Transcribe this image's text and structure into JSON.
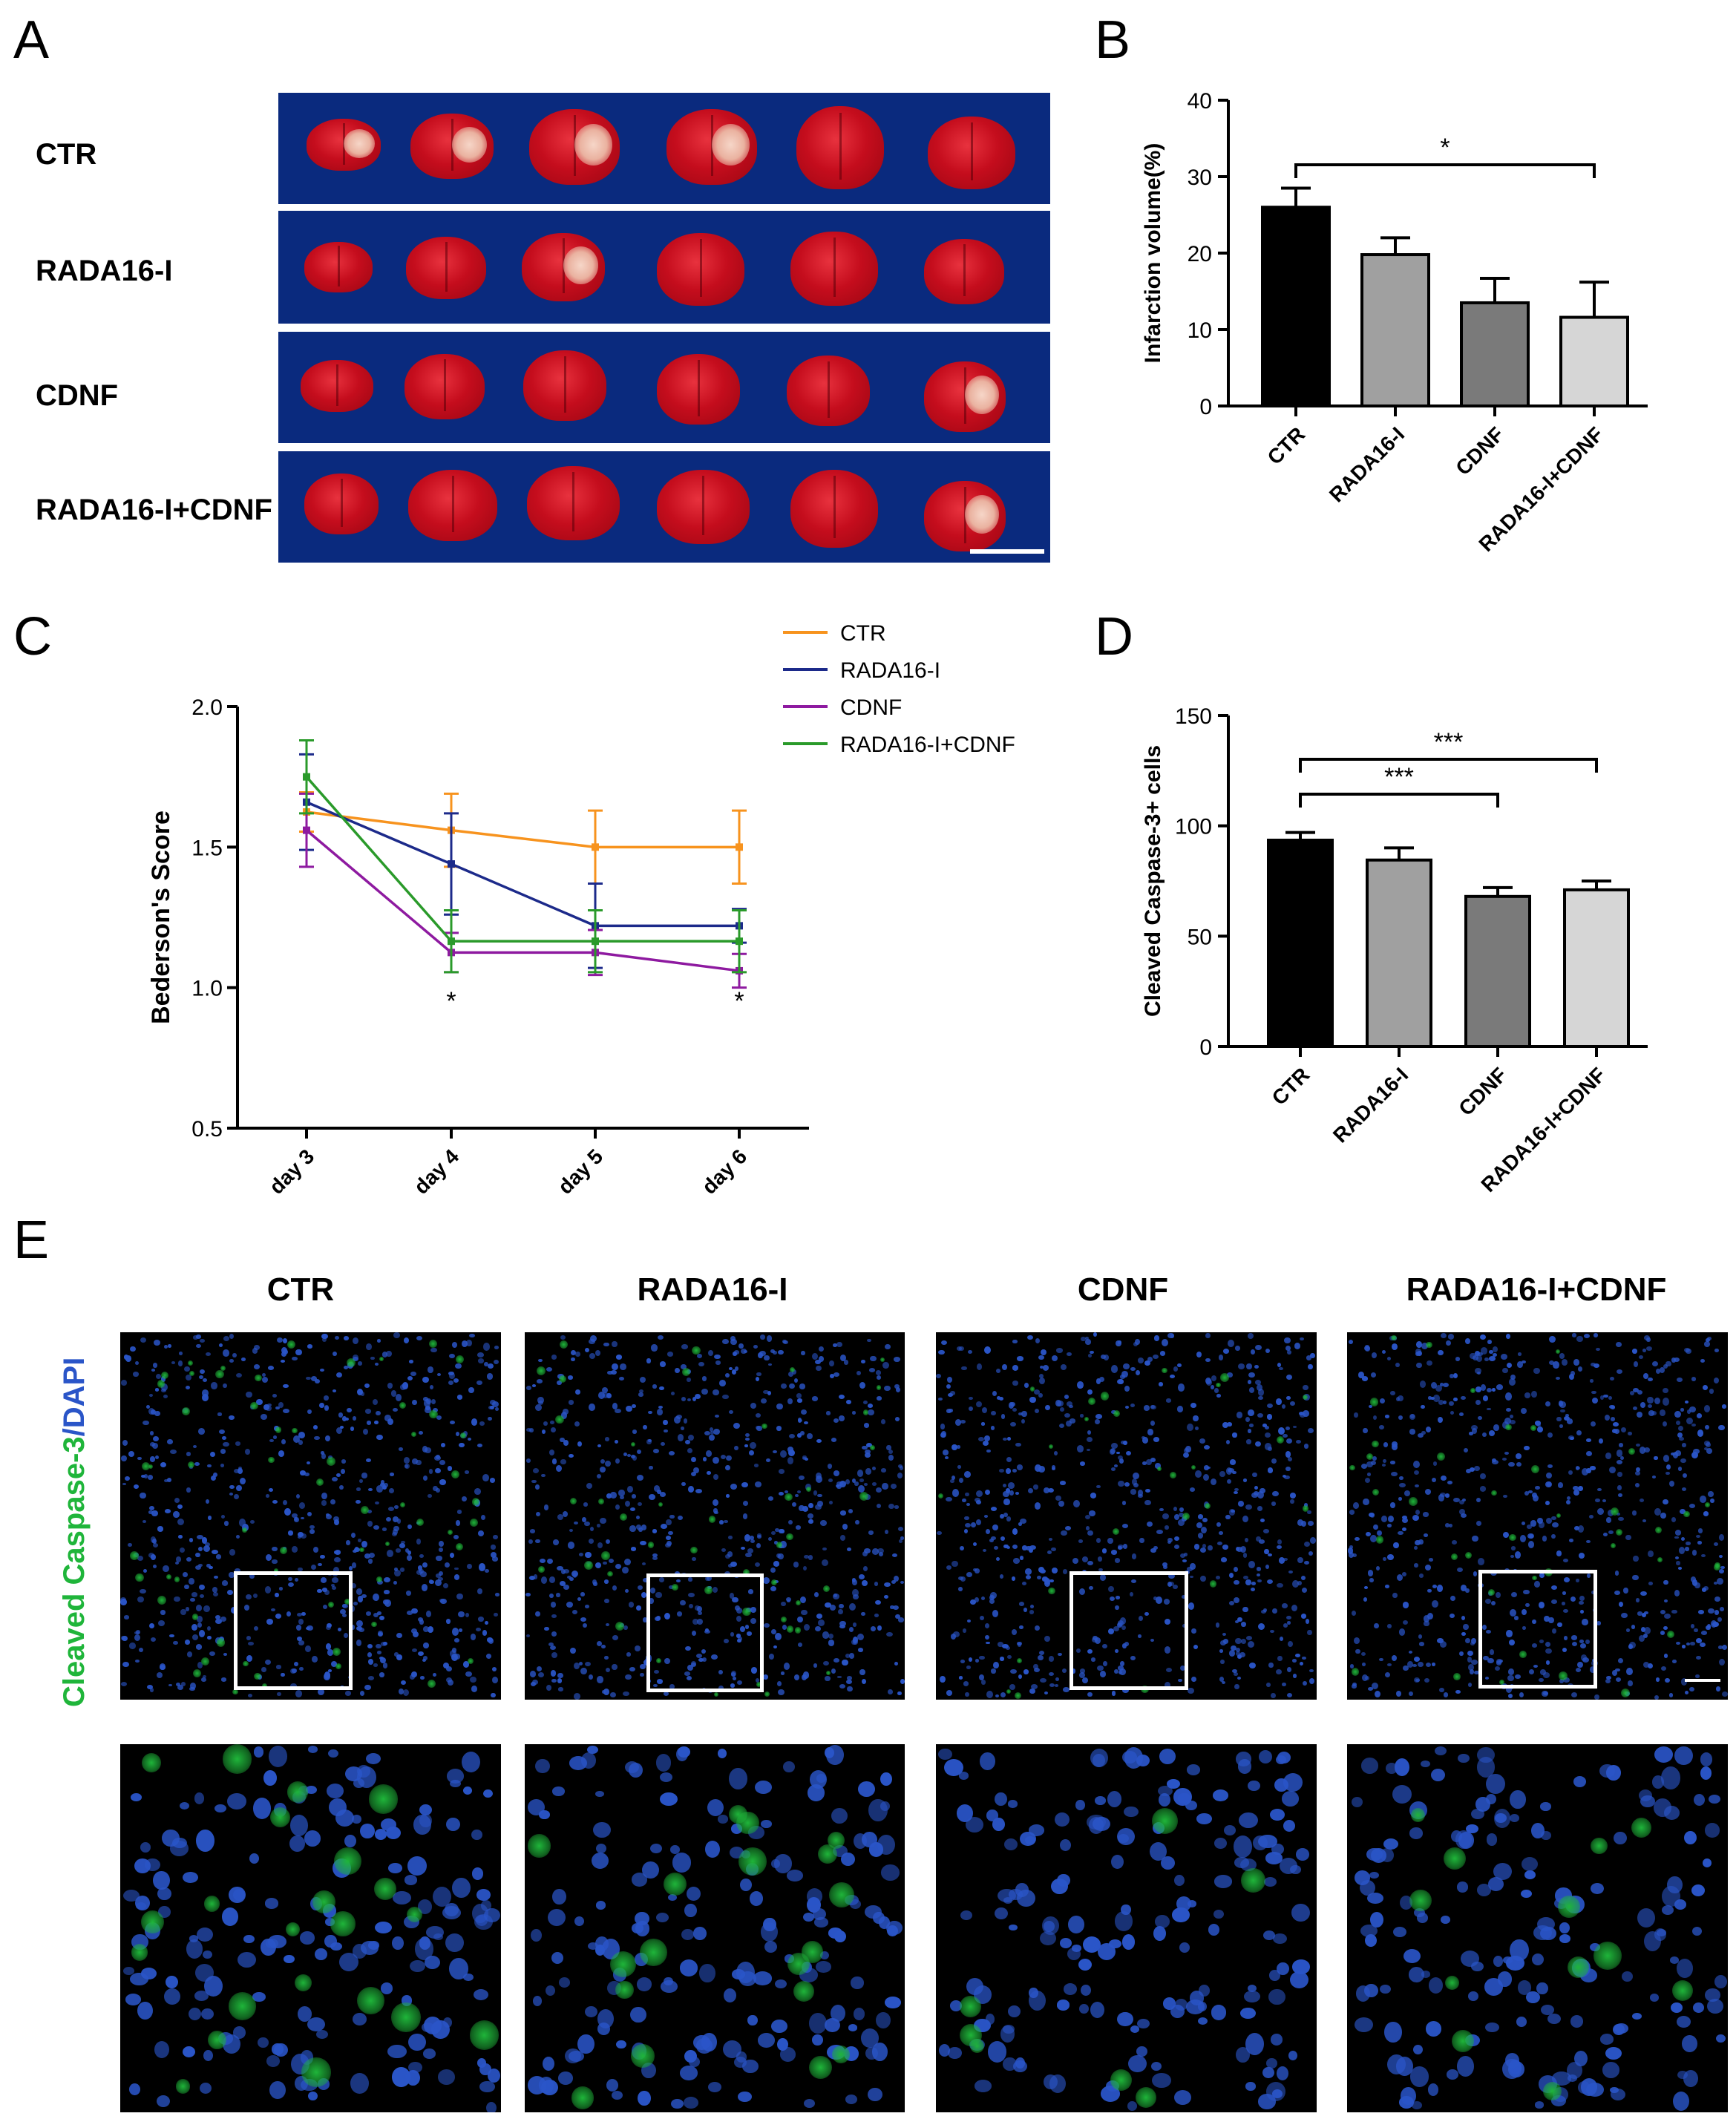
{
  "panels": {
    "a": "A",
    "b": "B",
    "c": "C",
    "d": "D",
    "e": "E"
  },
  "panel_a": {
    "rows": [
      "CTR",
      "RADA16-I",
      "CDNF",
      "RADA16-I+CDNF"
    ],
    "colors": {
      "background": "#0a2a7e",
      "tissue": "#c50d1d"
    }
  },
  "chart_data": [
    {
      "panel": "B",
      "type": "bar",
      "categories": [
        "CTR",
        "RADA16-I",
        "CDNF",
        "RADA16-I+CDNF"
      ],
      "values": [
        26.0,
        19.8,
        13.5,
        11.6
      ],
      "errors": [
        2.5,
        2.2,
        3.2,
        4.6
      ],
      "colors": [
        "#000000",
        "#a0a0a0",
        "#7a7a7a",
        "#d6d6d6"
      ],
      "ylabel": "Infarction volume(%)",
      "ylim": [
        0,
        40
      ],
      "yticks": [
        0,
        10,
        20,
        30,
        40
      ],
      "significance": [
        {
          "from": "CTR",
          "to": "RADA16-I+CDNF",
          "label": "*"
        }
      ]
    },
    {
      "panel": "C",
      "type": "line",
      "x": [
        "day 3",
        "day 4",
        "day 5",
        "day 6"
      ],
      "ylabel": "Bederson's Score",
      "ylim": [
        0.5,
        2.0
      ],
      "yticks": [
        "0.5",
        "1.0",
        "1.5",
        "2.0"
      ],
      "legend_position": "top-right",
      "series": [
        {
          "name": "CTR",
          "color": "#f7931e",
          "values": [
            1.625,
            1.56,
            1.5,
            1.5
          ],
          "errors": [
            0.07,
            0.13,
            0.13,
            0.13
          ]
        },
        {
          "name": "RADA16-I",
          "color": "#1c2a8a",
          "values": [
            1.66,
            1.44,
            1.22,
            1.22
          ],
          "errors": [
            0.17,
            0.18,
            0.15,
            0.06
          ]
        },
        {
          "name": "CDNF",
          "color": "#8e1aa0",
          "values": [
            1.56,
            1.125,
            1.125,
            1.06
          ],
          "errors": [
            0.13,
            0.07,
            0.08,
            0.06
          ]
        },
        {
          "name": "RADA16-I+CDNF",
          "color": "#2a9a2a",
          "values": [
            1.75,
            1.165,
            1.165,
            1.165
          ],
          "errors": [
            0.13,
            0.11,
            0.11,
            0.11
          ]
        }
      ],
      "annotations": [
        {
          "x": "day 4",
          "label": "*"
        },
        {
          "x": "day 6",
          "label": "*"
        }
      ]
    },
    {
      "panel": "D",
      "type": "bar",
      "categories": [
        "CTR",
        "RADA16-I",
        "CDNF",
        "RADA16-I+CDNF"
      ],
      "values": [
        93.5,
        84.5,
        68.0,
        71.0
      ],
      "errors": [
        3.5,
        5.5,
        4.0,
        4.0
      ],
      "colors": [
        "#000000",
        "#a0a0a0",
        "#7a7a7a",
        "#d6d6d6"
      ],
      "ylabel": "Cleaved Caspase-3+ cells",
      "ylim": [
        0,
        150
      ],
      "yticks": [
        0,
        50,
        100,
        150
      ],
      "significance": [
        {
          "from": "CTR",
          "to": "CDNF",
          "label": "***"
        },
        {
          "from": "CTR",
          "to": "RADA16-I+CDNF",
          "label": "***"
        }
      ]
    }
  ],
  "panel_e": {
    "columns": [
      "CTR",
      "RADA16-I",
      "CDNF",
      "RADA16-I+CDNF"
    ],
    "stain_label": {
      "part1": "Cleaved Caspase-3",
      "part2": "/DAPI"
    },
    "colors": {
      "caspase": "#1fb53a",
      "dapi": "#2a55c8"
    }
  }
}
